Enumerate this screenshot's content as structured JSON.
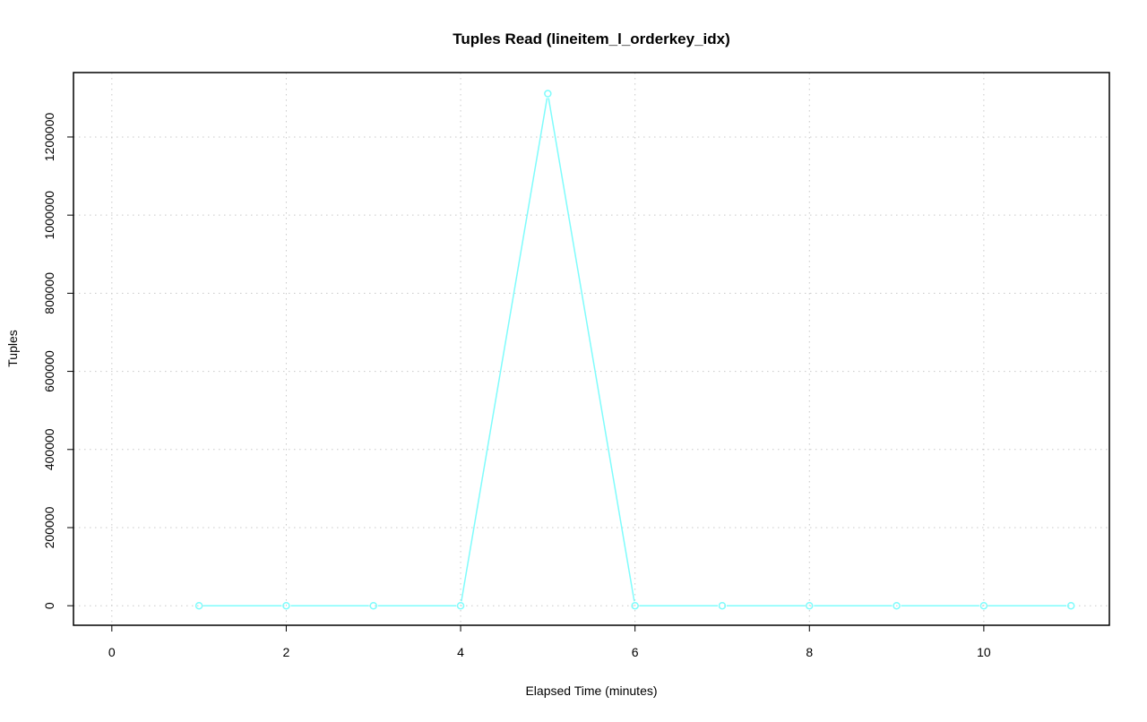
{
  "chart_data": {
    "type": "line",
    "title": "Tuples Read (lineitem_l_orderkey_idx)",
    "xlabel": "Elapsed Time (minutes)",
    "ylabel": "Tuples",
    "x": [
      1,
      2,
      3,
      4,
      5,
      6,
      7,
      8,
      9,
      10,
      11
    ],
    "series": [
      {
        "values": [
          0,
          0,
          0,
          0,
          1311000,
          0,
          0,
          0,
          0,
          0,
          0
        ],
        "color": "#7ffcfc"
      }
    ],
    "xlim": [
      -0.44,
      11.44
    ],
    "ylim": [
      -50000,
      1365000
    ],
    "xticks": [
      0,
      2,
      4,
      6,
      8,
      10
    ],
    "yticks": [
      0,
      200000,
      400000,
      600000,
      800000,
      1000000,
      1200000
    ],
    "xtick_labels": [
      "0",
      "2",
      "4",
      "6",
      "8",
      "10"
    ],
    "ytick_labels": [
      "0",
      "200000",
      "400000",
      "600000",
      "800000",
      "1000000",
      "1200000"
    ],
    "grid": true,
    "markers": "open-circle"
  }
}
